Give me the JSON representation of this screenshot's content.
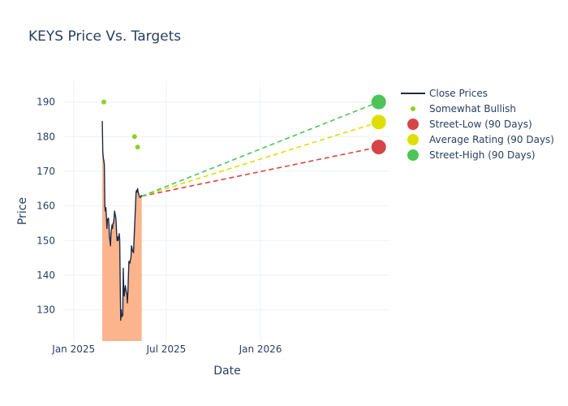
{
  "chart_data": {
    "type": "line",
    "title": "KEYS Price Vs. Targets",
    "xlabel": "Date",
    "ylabel": "Price",
    "xlim": [
      "2024-12-15",
      "2026-09-10"
    ],
    "ylim": [
      121,
      196
    ],
    "x_ticks": [
      {
        "date": "2025-01-01",
        "label": "Jan 2025"
      },
      {
        "date": "2025-07-01",
        "label": "Jul 2025"
      },
      {
        "date": "2026-01-01",
        "label": "Jan 2026"
      }
    ],
    "y_ticks": [
      130,
      140,
      150,
      160,
      170,
      180,
      190
    ],
    "grid": true,
    "legend_position": "top-right",
    "colors": {
      "close": "#1f2a44",
      "area": "#fbb48c",
      "bullish": "#8fcf2a",
      "low": "#d64545",
      "avg": "#dede00",
      "high": "#4dc45a"
    },
    "series": [
      {
        "name": "Close Prices",
        "kind": "line",
        "points": [
          [
            "2025-02-26",
            184.5
          ],
          [
            "2025-02-27",
            175.5
          ],
          [
            "2025-02-28",
            174.0
          ],
          [
            "2025-03-02",
            172.0
          ],
          [
            "2025-03-03",
            160.0
          ],
          [
            "2025-03-04",
            158.5
          ],
          [
            "2025-03-05",
            159.5
          ],
          [
            "2025-03-06",
            157.0
          ],
          [
            "2025-03-07",
            153.5
          ],
          [
            "2025-03-08",
            156.0
          ],
          [
            "2025-03-10",
            156.5
          ],
          [
            "2025-03-11",
            154.5
          ],
          [
            "2025-03-12",
            151.0
          ],
          [
            "2025-03-13",
            150.0
          ],
          [
            "2025-03-14",
            148.5
          ],
          [
            "2025-03-15",
            152.0
          ],
          [
            "2025-03-17",
            154.5
          ],
          [
            "2025-03-18",
            153.5
          ],
          [
            "2025-03-19",
            155.0
          ],
          [
            "2025-03-20",
            155.0
          ],
          [
            "2025-03-21",
            156.5
          ],
          [
            "2025-03-22",
            158.5
          ],
          [
            "2025-03-24",
            157.0
          ],
          [
            "2025-03-25",
            155.5
          ],
          [
            "2025-03-26",
            152.0
          ],
          [
            "2025-03-27",
            150.0
          ],
          [
            "2025-03-28",
            151.0
          ],
          [
            "2025-03-29",
            150.0
          ],
          [
            "2025-03-31",
            152.0
          ],
          [
            "2025-04-01",
            150.5
          ],
          [
            "2025-04-02",
            138.0
          ],
          [
            "2025-04-03",
            127.0
          ],
          [
            "2025-04-04",
            130.0
          ],
          [
            "2025-04-05",
            128.0
          ],
          [
            "2025-04-07",
            128.5
          ],
          [
            "2025-04-08",
            142.0
          ],
          [
            "2025-04-09",
            135.0
          ],
          [
            "2025-04-10",
            134.0
          ],
          [
            "2025-04-11",
            136.0
          ],
          [
            "2025-04-12",
            137.0
          ],
          [
            "2025-04-14",
            135.0
          ],
          [
            "2025-04-15",
            134.5
          ],
          [
            "2025-04-16",
            132.0
          ],
          [
            "2025-04-17",
            135.0
          ],
          [
            "2025-04-19",
            144.0
          ],
          [
            "2025-04-21",
            143.5
          ],
          [
            "2025-04-22",
            144.5
          ],
          [
            "2025-04-23",
            145.0
          ],
          [
            "2025-04-24",
            148.5
          ],
          [
            "2025-04-25",
            148.0
          ],
          [
            "2025-04-26",
            147.0
          ],
          [
            "2025-04-28",
            146.5
          ],
          [
            "2025-04-29",
            150.0
          ],
          [
            "2025-05-01",
            157.0
          ],
          [
            "2025-05-03",
            164.0
          ],
          [
            "2025-05-04",
            164.5
          ],
          [
            "2025-05-05",
            164.0
          ],
          [
            "2025-05-06",
            165.0
          ],
          [
            "2025-05-07",
            164.0
          ],
          [
            "2025-05-09",
            163.0
          ],
          [
            "2025-05-10",
            162.5
          ],
          [
            "2025-05-12",
            162.5
          ],
          [
            "2025-05-13",
            163.0
          ],
          [
            "2025-05-14",
            162.8
          ]
        ]
      },
      {
        "name": "Somewhat Bullish",
        "kind": "markers",
        "points": [
          [
            "2025-03-01",
            190.0
          ],
          [
            "2025-04-30",
            180.0
          ],
          [
            "2025-05-06",
            177.0
          ]
        ]
      },
      {
        "name": "Street-Low (90 Days)",
        "kind": "target",
        "from": [
          "2025-05-14",
          162.8
        ],
        "to": [
          "2026-08-20",
          177.0
        ]
      },
      {
        "name": "Average Rating (90 Days)",
        "kind": "target",
        "from": [
          "2025-05-14",
          162.8
        ],
        "to": [
          "2026-08-20",
          184.2
        ]
      },
      {
        "name": "Street-High (90 Days)",
        "kind": "target",
        "from": [
          "2025-05-14",
          162.8
        ],
        "to": [
          "2026-08-20",
          190.0
        ]
      }
    ]
  }
}
